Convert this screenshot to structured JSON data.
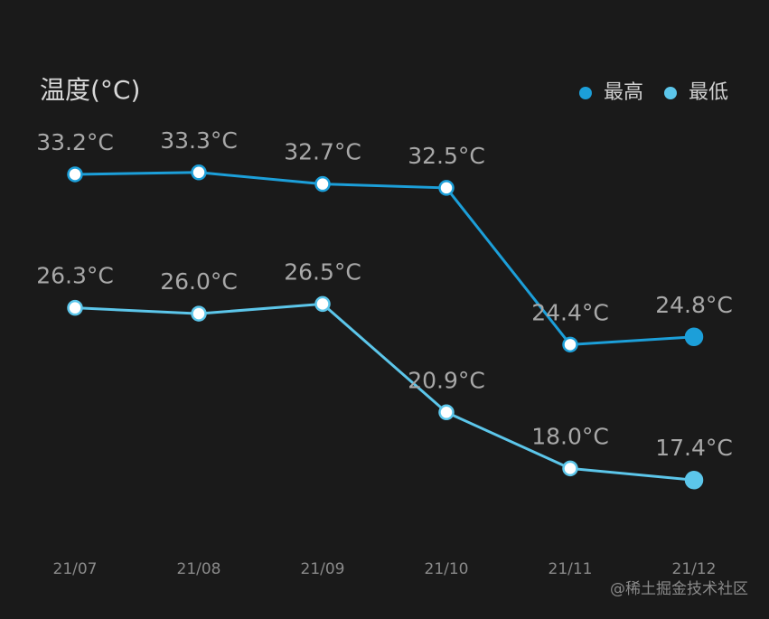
{
  "chart_data": {
    "type": "line",
    "title": "温度(°C)",
    "categories": [
      "21/07",
      "21/08",
      "21/09",
      "21/10",
      "21/11",
      "21/12"
    ],
    "series": [
      {
        "name": "最高",
        "color": "#1c9fd9",
        "values": [
          33.2,
          33.3,
          32.7,
          32.5,
          24.4,
          24.8
        ],
        "value_labels": [
          "33.2°C",
          "33.3°C",
          "32.7°C",
          "32.5°C",
          "24.4°C",
          "24.8°C"
        ]
      },
      {
        "name": "最低",
        "color": "#5cc6ea",
        "values": [
          26.3,
          26.0,
          26.5,
          20.9,
          18.0,
          17.4
        ],
        "value_labels": [
          "26.3°C",
          "26.0°C",
          "26.5°C",
          "20.9°C",
          "18.0°C",
          "17.4°C"
        ]
      }
    ],
    "ylim": [
      14,
      36
    ],
    "legend": "top-right"
  },
  "watermark": "@稀土掘金技术社区"
}
